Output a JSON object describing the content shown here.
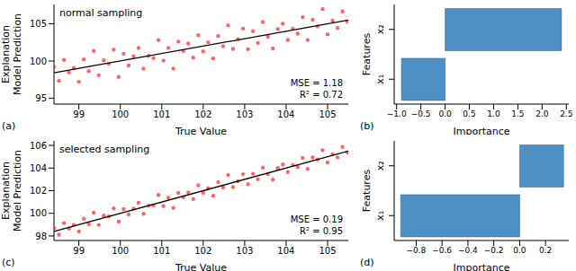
{
  "chart_data": [
    {
      "type": "scatter",
      "panel": "(a)",
      "title": "normal sampling",
      "annotations": [
        "MSE = 1.18",
        "R² = 0.72"
      ],
      "x_label": "True Value",
      "y_label": "Explanation Model Prediction",
      "xlim": [
        98.4,
        105.5
      ],
      "xticks": [
        99,
        100,
        101,
        102,
        103,
        104,
        105
      ],
      "ylim": [
        94.2,
        107.6
      ],
      "yticks": [
        95,
        100,
        105
      ],
      "series": [
        {
          "type": "scatter",
          "color": "#ff0000",
          "marker": "circle",
          "x": [
            98.4,
            98.52,
            98.64,
            98.76,
            98.88,
            99.0,
            99.12,
            99.24,
            99.36,
            99.48,
            99.6,
            99.72,
            99.84,
            99.96,
            100.08,
            100.2,
            100.32,
            100.44,
            100.56,
            100.68,
            100.8,
            100.92,
            101.04,
            101.16,
            101.28,
            101.4,
            101.52,
            101.64,
            101.76,
            101.88,
            102.0,
            102.12,
            102.24,
            102.36,
            102.48,
            102.6,
            102.72,
            102.84,
            102.96,
            103.08,
            103.2,
            103.32,
            103.44,
            103.56,
            103.68,
            103.8,
            103.92,
            104.04,
            104.16,
            104.28,
            104.4,
            104.52,
            104.64,
            104.76,
            104.88,
            105.0,
            105.12,
            105.24,
            105.36,
            105.48
          ],
          "values": [
            99.2,
            97.32,
            100.14,
            98.46,
            99.08,
            97.2,
            100.22,
            98.64,
            101.36,
            98.08,
            100.1,
            99.62,
            101.54,
            97.86,
            100.98,
            99.4,
            100.62,
            101.74,
            98.96,
            100.68,
            100.4,
            102.82,
            100.04,
            101.76,
            98.98,
            102.6,
            101.32,
            102.34,
            100.46,
            103.48,
            101.3,
            102.52,
            100.34,
            103.36,
            101.98,
            104.8,
            101.62,
            102.94,
            104.36,
            101.58,
            104.0,
            102.42,
            105.24,
            103.26,
            101.68,
            104.3,
            105.02,
            102.84,
            104.36,
            103.68,
            105.9,
            102.82,
            105.54,
            104.66,
            106.98,
            103.6,
            105.42,
            104.44,
            106.66,
            105.28
          ]
        },
        {
          "type": "line",
          "color": "#000000",
          "line_style": "solid",
          "x": [
            98.4,
            105.5
          ],
          "values": [
            98.4,
            105.5
          ]
        }
      ]
    },
    {
      "type": "bar",
      "orientation": "horizontal",
      "panel": "(b)",
      "x_label": "Importance",
      "y_label": "Features",
      "categories": [
        "x₁",
        "x₂"
      ],
      "values": [
        -0.9,
        2.4
      ],
      "color": "#4e8fc4",
      "xlim": [
        -1.05,
        2.55
      ],
      "xticks": [
        {
          "value": -1.0,
          "label": "−1.0"
        },
        {
          "value": -0.5,
          "label": "−0.5"
        },
        {
          "value": 0,
          "label": "0.0"
        },
        0.5,
        {
          "value": 1,
          "label": "1.0"
        },
        1.5,
        {
          "value": 2,
          "label": "2.0"
        },
        2.5
      ]
    },
    {
      "type": "scatter",
      "panel": "(c)",
      "title": "selected sampling",
      "annotations": [
        "MSE = 0.19",
        "R² = 0.95"
      ],
      "x_label": "True Value",
      "y_label": "Explanation Model Prediction",
      "xlim": [
        98.4,
        105.5
      ],
      "xticks": [
        99,
        100,
        101,
        102,
        103,
        104,
        105
      ],
      "ylim": [
        97.6,
        106.4
      ],
      "yticks": [
        98,
        100,
        102,
        104,
        106
      ],
      "series": [
        {
          "type": "scatter",
          "color": "#ff0000",
          "marker": "circle",
          "x": [
            98.4,
            98.52,
            98.64,
            98.76,
            98.88,
            99.0,
            99.12,
            99.24,
            99.36,
            99.48,
            99.6,
            99.72,
            99.84,
            99.96,
            100.08,
            100.2,
            100.32,
            100.44,
            100.56,
            100.68,
            100.8,
            100.92,
            101.04,
            101.16,
            101.28,
            101.4,
            101.52,
            101.64,
            101.76,
            101.88,
            102.0,
            102.12,
            102.24,
            102.36,
            102.48,
            102.6,
            102.72,
            102.84,
            102.96,
            103.08,
            103.2,
            103.32,
            103.44,
            103.56,
            103.68,
            103.8,
            103.92,
            104.04,
            104.16,
            104.28,
            104.4,
            104.52,
            104.64,
            104.76,
            104.88,
            105.0,
            105.12,
            105.24,
            105.36,
            105.48
          ],
          "values": [
            98.7,
            98.12,
            99.14,
            98.66,
            98.98,
            98.4,
            99.52,
            99.04,
            100.06,
            98.98,
            99.8,
            99.72,
            100.44,
            99.26,
            100.38,
            99.9,
            100.42,
            100.94,
            99.96,
            100.68,
            100.7,
            101.62,
            100.64,
            101.36,
            100.48,
            101.8,
            101.42,
            101.84,
            101.26,
            102.48,
            101.8,
            102.22,
            101.54,
            102.76,
            102.28,
            103.4,
            102.32,
            102.84,
            103.46,
            102.58,
            103.5,
            103.02,
            104.04,
            103.46,
            102.98,
            104.0,
            104.32,
            103.64,
            104.26,
            104.08,
            104.9,
            103.92,
            104.94,
            104.76,
            105.58,
            104.5,
            105.22,
            104.94,
            105.86,
            105.38
          ]
        },
        {
          "type": "line",
          "color": "#000000",
          "line_style": "solid",
          "x": [
            98.4,
            105.5
          ],
          "values": [
            98.4,
            105.5
          ]
        }
      ]
    },
    {
      "type": "bar",
      "orientation": "horizontal",
      "panel": "(d)",
      "x_label": "Importance",
      "y_label": "Features",
      "categories": [
        "x₁",
        "x₂"
      ],
      "values": [
        -0.92,
        0.34
      ],
      "color": "#4e8fc4",
      "xlim": [
        -0.97,
        0.38
      ],
      "xticks": [
        {
          "value": -0.8,
          "label": "−0.8"
        },
        {
          "value": -0.6,
          "label": "−0.6"
        },
        {
          "value": -0.4,
          "label": "−0.4"
        },
        {
          "value": -0.2,
          "label": "−0.2"
        },
        {
          "value": 0,
          "label": "0.0"
        },
        0.2
      ]
    }
  ]
}
